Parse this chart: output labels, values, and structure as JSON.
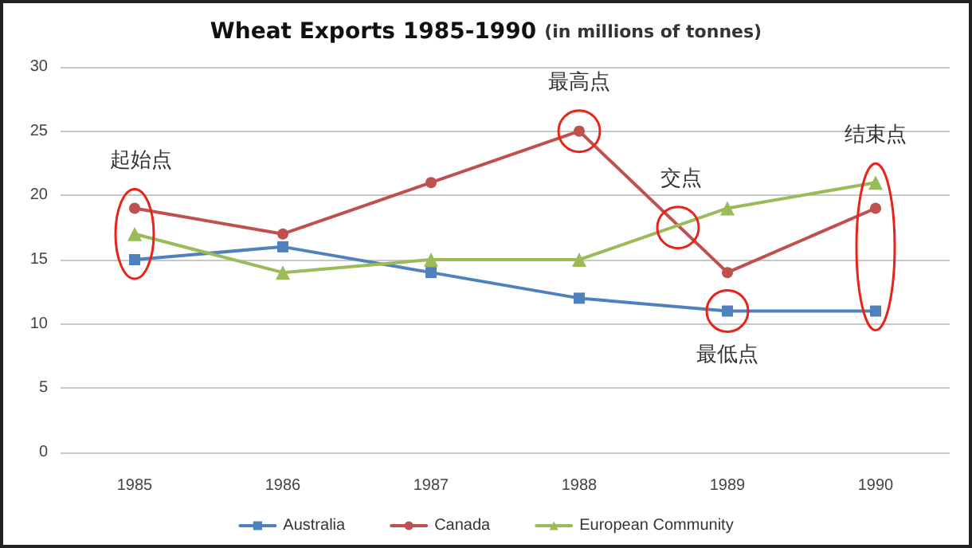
{
  "chart_data": {
    "type": "line",
    "title": "Wheat Exports 1985-1990",
    "subtitle": "(in millions of tonnes)",
    "categories": [
      "1985",
      "1986",
      "1987",
      "1988",
      "1989",
      "1990"
    ],
    "series": [
      {
        "name": "Australia",
        "color": "#4f81bd",
        "marker": "square",
        "values": [
          15,
          16,
          14,
          12,
          11,
          11
        ]
      },
      {
        "name": "Canada",
        "color": "#c0504d",
        "marker": "circle",
        "values": [
          19,
          17,
          21,
          25,
          14,
          19
        ]
      },
      {
        "name": "European Community",
        "color": "#9bbb59",
        "marker": "triangle",
        "values": [
          17,
          14,
          15,
          15,
          19,
          21
        ]
      }
    ],
    "ylim": [
      0,
      30
    ],
    "yticks": [
      0,
      5,
      10,
      15,
      20,
      25,
      30
    ],
    "grid": "y",
    "legend": "bottom",
    "line_style": "solid",
    "annotations": [
      {
        "text": "起始点",
        "x": "1985",
        "y": 17
      },
      {
        "text": "最高点",
        "x": "1988",
        "y": 25
      },
      {
        "text": "交点",
        "y": 17.5
      },
      {
        "text": "最低点",
        "x": "1989",
        "y": 11
      },
      {
        "text": "结束点",
        "x": "1990",
        "y": 19
      }
    ]
  }
}
